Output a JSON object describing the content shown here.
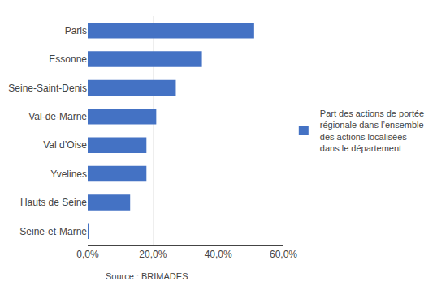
{
  "chart_data": {
    "type": "bar",
    "orientation": "horizontal",
    "categories": [
      "Paris",
      "Essonne",
      "Seine-Saint-Denis",
      "Val-de-Marne",
      "Val d’Oise",
      "Yvelines",
      "Hauts de Seine",
      "Seine-et-Marne"
    ],
    "series": [
      {
        "name": "Part des actions de portée\nrégionale dans l’ensemble\ndes actions localisées\ndans le département",
        "color": "#4472C4",
        "values": [
          0.51,
          0.35,
          0.27,
          0.21,
          0.18,
          0.18,
          0.13,
          0.001
        ]
      }
    ],
    "xlim": [
      0,
      0.6
    ],
    "xticks": [
      {
        "value": 0.0,
        "label": "0,0%"
      },
      {
        "value": 0.2,
        "label": "20,0%"
      },
      {
        "value": 0.4,
        "label": "40,0%"
      },
      {
        "value": 0.6,
        "label": "60,0%"
      }
    ],
    "grid": true,
    "legend": "right",
    "annotations": [
      "Source : BRIMADES"
    ]
  }
}
